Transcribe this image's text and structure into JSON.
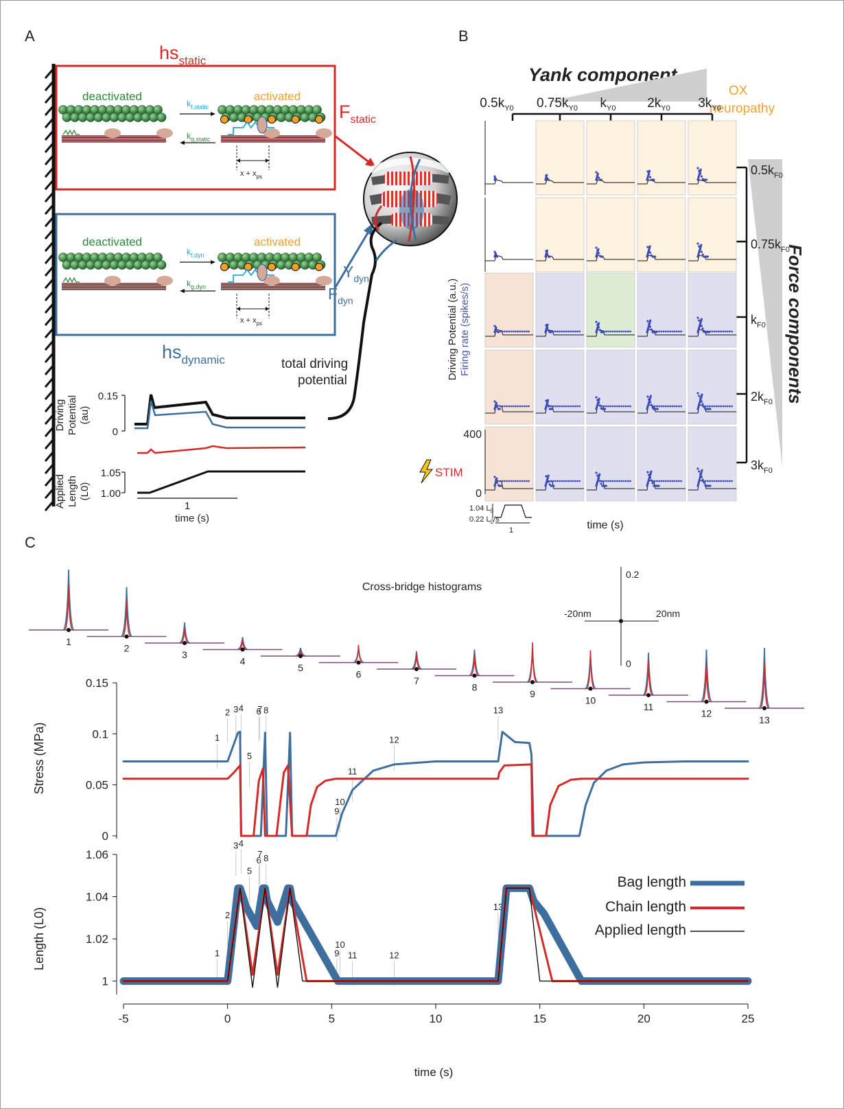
{
  "panels": {
    "a": "A",
    "b": "B",
    "c": "C"
  },
  "panel_a": {
    "hs_static": {
      "main": "hs",
      "sub": "static"
    },
    "hs_dynamic": {
      "main": "hs",
      "sub": "dynamic"
    },
    "deactivated": "deactivated",
    "activated": "activated",
    "kf_static": {
      "main": "k",
      "sub": "f,static"
    },
    "kg_static": {
      "main": "k",
      "sub": "g,static"
    },
    "kf_dyn": {
      "main": "k",
      "sub": "f,dyn"
    },
    "kg_dyn": {
      "main": "k",
      "sub": "g,dyn"
    },
    "x_xps": {
      "main": "x + x",
      "sub": "ps"
    },
    "F_static": {
      "main": "F",
      "sub": "static"
    },
    "Y_dyn": {
      "main": "Y",
      "sub": "dyn"
    },
    "F_dyn": {
      "main": "F",
      "sub": "dyn"
    },
    "total_line1": "total driving",
    "total_line2": "potential",
    "dp_label1": "Driving",
    "dp_label2": "Potential",
    "dp_label3": "(au)",
    "dp_tick_top": "0.15",
    "dp_tick_bottom": "0",
    "al_label1": "Applied",
    "al_label2": "Length",
    "al_label3": "(L0)",
    "al_tick_top": "1.05",
    "al_tick_bottom": "1.00",
    "time_scale": "1",
    "time_label": "time (s)"
  },
  "panel_b": {
    "yank_title": "Yank component",
    "force_title": "Force components",
    "ox_line1": "OX",
    "ox_line2": "neuropathy",
    "cols": [
      {
        "main": "0.5k",
        "sub": "Y0"
      },
      {
        "main": "0.75k",
        "sub": "Y0"
      },
      {
        "main": "k",
        "sub": "Y0"
      },
      {
        "main": "2k",
        "sub": "Y0"
      },
      {
        "main": "3k",
        "sub": "Y0"
      }
    ],
    "rows": [
      {
        "main": "0.5k",
        "sub": "F0"
      },
      {
        "main": "0.75k",
        "sub": "F0"
      },
      {
        "main": "k",
        "sub": "F0"
      },
      {
        "main": "2k",
        "sub": "F0"
      },
      {
        "main": "3k",
        "sub": "F0"
      }
    ],
    "ylabel_black": "Driving Potential (a.u.)",
    "ylabel_blue": "Firing rate (spikes/s)",
    "y_tick_top": "400",
    "y_tick_bottom": "0",
    "stim": "STIM",
    "len_tick_top": {
      "main": "1.04 L",
      "sub": "0"
    },
    "len_tick_bottom": {
      "main": "0.22 L",
      "sub": "0",
      "post": "/s"
    },
    "len_scale": "1",
    "time_label": "time (s)",
    "cell_colors": [
      [
        "#ffffff",
        "#fdf1df",
        "#fdf1df",
        "#fdf1df",
        "#fdf1df"
      ],
      [
        "#ffffff",
        "#fdf1df",
        "#fdf1df",
        "#fdf1df",
        "#fdf1df"
      ],
      [
        "#f6e2d6",
        "#dfdff0",
        "#dcecd5",
        "#dfdff0",
        "#dfdff0"
      ],
      [
        "#f6e2d6",
        "#dfdff0",
        "#dfdff0",
        "#dfdff0",
        "#dfdff0"
      ],
      [
        "#f6e2d6",
        "#dfdff0",
        "#dfdff0",
        "#dfdff0",
        "#dfdff0"
      ]
    ]
  },
  "panel_c": {
    "histo_title": "Cross-bridge histograms",
    "scale_neg": "-20nm",
    "scale_pos": "20nm",
    "scale_top": "0.2",
    "scale_bottom": "0",
    "histogram_labels": [
      "1",
      "2",
      "3",
      "4",
      "5",
      "6",
      "7",
      "8",
      "9",
      "10",
      "11",
      "12",
      "13"
    ],
    "stress_ylabel": "Stress (MPa)",
    "length_ylabel": "Length (L0)",
    "xlabel": "time (s)",
    "legend": [
      "Bag length",
      "Chain length",
      "Applied length"
    ],
    "colors": {
      "bag": "#3d6e9e",
      "chain": "#d42a27",
      "applied": "#111111"
    }
  },
  "chart_data": [
    {
      "type": "line",
      "xlabel": "",
      "ylabel": "Stress (MPa)",
      "xlim": [
        -5,
        25
      ],
      "ylim": [
        0,
        0.15
      ],
      "yticks": [
        "0",
        "0.05",
        "0.1",
        "0.15"
      ],
      "annotations": [
        {
          "label": "1",
          "x": -0.5,
          "y": 0.073
        },
        {
          "label": "2",
          "x": 0.0,
          "y": 0.098
        },
        {
          "label": "3",
          "x": 0.4,
          "y": 0.101
        },
        {
          "label": "4",
          "x": 0.65,
          "y": 0.102
        },
        {
          "label": "5",
          "x": 1.05,
          "y": 0.055
        },
        {
          "label": "6",
          "x": 1.5,
          "y": 0.099
        },
        {
          "label": "7",
          "x": 1.55,
          "y": 0.101
        },
        {
          "label": "8",
          "x": 1.85,
          "y": 0.1
        },
        {
          "label": "9",
          "x": 5.25,
          "y": 0.001
        },
        {
          "label": "10",
          "x": 5.4,
          "y": 0.01
        },
        {
          "label": "11",
          "x": 6.0,
          "y": 0.04
        },
        {
          "label": "12",
          "x": 8.0,
          "y": 0.071
        },
        {
          "label": "13",
          "x": 13.0,
          "y": 0.1
        }
      ],
      "series": [
        {
          "name": "",
          "x": [
            -5,
            -0.5,
            0,
            0.5,
            0.6,
            0.65,
            1.2,
            1.6,
            1.8,
            1.9,
            2.4,
            2.8,
            3.0,
            3.1,
            3.6,
            5.2,
            5.5,
            6,
            7,
            8,
            10,
            13,
            13.2,
            13.8,
            14.5,
            14.6,
            14.7,
            16.9,
            17.2,
            17.6,
            18.2,
            19,
            20,
            22,
            25
          ],
          "y": [
            0.073,
            0.073,
            0.073,
            0.101,
            0.102,
            0,
            0,
            0,
            0.101,
            0,
            0,
            0,
            0.101,
            0,
            0,
            0,
            0.022,
            0.045,
            0.064,
            0.07,
            0.073,
            0.073,
            0.102,
            0.092,
            0.091,
            0.08,
            0,
            0,
            0.03,
            0.052,
            0.064,
            0.07,
            0.072,
            0.073,
            0.073
          ]
        },
        {
          "name": "",
          "x": [
            -5,
            -0.5,
            0,
            0.3,
            0.6,
            0.65,
            1.25,
            1.5,
            1.7,
            1.8,
            2.35,
            2.7,
            2.9,
            3.1,
            3.8,
            4.0,
            4.3,
            4.7,
            5.2,
            6,
            13,
            13.05,
            13.3,
            14.6,
            14.65,
            15.3,
            15.5,
            15.9,
            16.5,
            17,
            25
          ],
          "y": [
            0.056,
            0.056,
            0.056,
            0.062,
            0.069,
            0,
            0,
            0.054,
            0.066,
            0,
            0,
            0.062,
            0.069,
            0,
            0,
            0.03,
            0.048,
            0.054,
            0.056,
            0.056,
            0.056,
            0.062,
            0.069,
            0.07,
            0,
            0,
            0.03,
            0.049,
            0.055,
            0.056,
            0.056
          ]
        }
      ]
    },
    {
      "type": "line",
      "xlabel": "time (s)",
      "ylabel": "Length (L0)",
      "xlim": [
        -5,
        25
      ],
      "ylim": [
        0.995,
        1.06
      ],
      "xticks": [
        "-5",
        "0",
        "5",
        "10",
        "15",
        "20",
        "25"
      ],
      "yticks": [
        "1",
        "1.02",
        "1.04",
        "1.06"
      ],
      "legend_position": "right",
      "annotations": [
        {
          "label": "1",
          "x": -0.5,
          "y": 1.002
        },
        {
          "label": "2",
          "x": 0.0,
          "y": 1.02
        },
        {
          "label": "3",
          "x": 0.4,
          "y": 1.053
        },
        {
          "label": "4",
          "x": 0.65,
          "y": 1.054
        },
        {
          "label": "5",
          "x": 1.05,
          "y": 1.041
        },
        {
          "label": "6",
          "x": 1.5,
          "y": 1.046
        },
        {
          "label": "7",
          "x": 1.55,
          "y": 1.049
        },
        {
          "label": "8",
          "x": 1.85,
          "y": 1.047
        },
        {
          "label": "9",
          "x": 5.25,
          "y": 1.002
        },
        {
          "label": "10",
          "x": 5.4,
          "y": 1.006
        },
        {
          "label": "11",
          "x": 6.0,
          "y": 1.001
        },
        {
          "label": "12",
          "x": 8.0,
          "y": 1.001
        },
        {
          "label": "13",
          "x": 13.0,
          "y": 1.024
        }
      ],
      "series": [
        {
          "name": "Bag length",
          "x": [
            -5,
            0,
            0.5,
            0.6,
            0.9,
            1.4,
            1.7,
            1.8,
            1.9,
            2.4,
            2.9,
            3.0,
            3.1,
            5.3,
            13,
            13.4,
            14.5,
            14.7,
            15.2,
            17.0,
            25
          ],
          "y": [
            1,
            1,
            1.044,
            1.044,
            1.035,
            1.026,
            1.044,
            1.044,
            1.038,
            1.028,
            1.044,
            1.044,
            1.038,
            1,
            1,
            1.044,
            1.044,
            1.038,
            1.032,
            1,
            1
          ]
        },
        {
          "name": "Chain length",
          "x": [
            -5,
            0,
            0.6,
            1.2,
            1.8,
            2.4,
            3.0,
            3.8,
            13,
            13.4,
            14.5,
            15.6,
            25
          ],
          "y": [
            1,
            1,
            1.044,
            1.003,
            1.044,
            1.003,
            1.044,
            1,
            1,
            1.044,
            1.044,
            1,
            1
          ]
        },
        {
          "name": "Applied length",
          "x": [
            -5,
            0,
            0.6,
            1.2,
            1.8,
            2.4,
            3.0,
            3.6,
            13,
            13.4,
            14.5,
            15.0,
            25
          ],
          "y": [
            1,
            1,
            1.044,
            0.997,
            1.044,
            0.997,
            1.044,
            1,
            1,
            1.044,
            1.044,
            1,
            1
          ]
        }
      ]
    }
  ]
}
